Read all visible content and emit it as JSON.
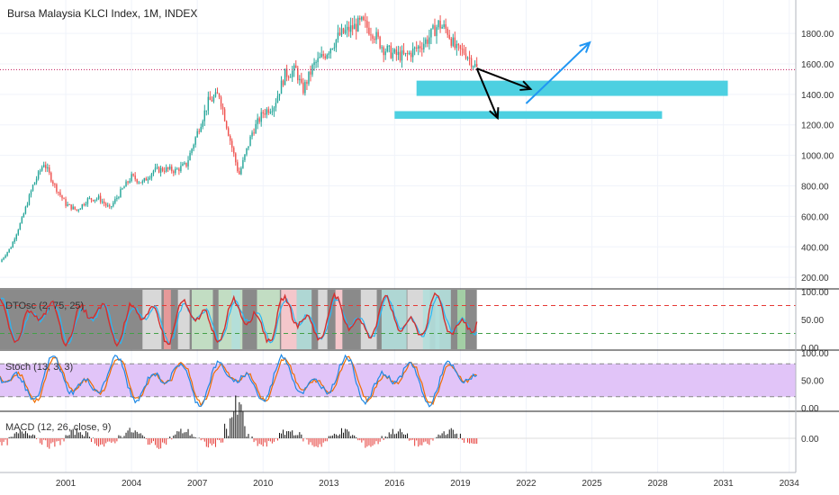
{
  "chart_data": {
    "type": "candlestick",
    "title": "Bursa Malaysia KLCI Index, 1M, INDEX",
    "current_price": 1562,
    "price_axis": {
      "range": [
        130,
        1960
      ],
      "ticks": [
        {
          "v": 200,
          "label": "200.00"
        },
        {
          "v": 400,
          "label": "400.00"
        },
        {
          "v": 600,
          "label": "600.00"
        },
        {
          "v": 800,
          "label": "800.00"
        },
        {
          "v": 1000,
          "label": "1000.00"
        },
        {
          "v": 1200,
          "label": "1200.00"
        },
        {
          "v": 1400,
          "label": "1400.00"
        },
        {
          "v": 1600,
          "label": "1600.00"
        },
        {
          "v": 1800,
          "label": "1800.00"
        }
      ]
    },
    "time_axis": {
      "range": [
        1998.0,
        2034.3
      ],
      "ticks": [
        {
          "v": 2001,
          "label": "2001"
        },
        {
          "v": 2004,
          "label": "2004"
        },
        {
          "v": 2007,
          "label": "2007"
        },
        {
          "v": 2010,
          "label": "2010"
        },
        {
          "v": 2013,
          "label": "2013"
        },
        {
          "v": 2016,
          "label": "2016"
        },
        {
          "v": 2019,
          "label": "2019"
        },
        {
          "v": 2022,
          "label": "2022"
        },
        {
          "v": 2025,
          "label": "2025"
        },
        {
          "v": 2028,
          "label": "2028"
        },
        {
          "v": 2031,
          "label": "2031"
        },
        {
          "v": 2034,
          "label": "2034"
        }
      ]
    },
    "price_path": [
      {
        "t": 1998.0,
        "p": 300
      },
      {
        "t": 1998.5,
        "p": 400
      },
      {
        "t": 1999.0,
        "p": 580
      },
      {
        "t": 1999.5,
        "p": 800
      },
      {
        "t": 2000.0,
        "p": 950
      },
      {
        "t": 2000.5,
        "p": 800
      },
      {
        "t": 2001.0,
        "p": 680
      },
      {
        "t": 2001.5,
        "p": 640
      },
      {
        "t": 2002.0,
        "p": 710
      },
      {
        "t": 2002.5,
        "p": 720
      },
      {
        "t": 2003.0,
        "p": 650
      },
      {
        "t": 2003.5,
        "p": 760
      },
      {
        "t": 2004.0,
        "p": 860
      },
      {
        "t": 2004.5,
        "p": 820
      },
      {
        "t": 2005.0,
        "p": 900
      },
      {
        "t": 2005.5,
        "p": 910
      },
      {
        "t": 2006.0,
        "p": 900
      },
      {
        "t": 2006.5,
        "p": 940
      },
      {
        "t": 2007.0,
        "p": 1150
      },
      {
        "t": 2007.5,
        "p": 1350
      },
      {
        "t": 2008.0,
        "p": 1400
      },
      {
        "t": 2008.5,
        "p": 1100
      },
      {
        "t": 2008.9,
        "p": 870
      },
      {
        "t": 2009.5,
        "p": 1150
      },
      {
        "t": 2010.0,
        "p": 1280
      },
      {
        "t": 2010.5,
        "p": 1330
      },
      {
        "t": 2011.0,
        "p": 1530
      },
      {
        "t": 2011.5,
        "p": 1560
      },
      {
        "t": 2011.8,
        "p": 1420
      },
      {
        "t": 2012.3,
        "p": 1590
      },
      {
        "t": 2012.8,
        "p": 1660
      },
      {
        "t": 2013.5,
        "p": 1790
      },
      {
        "t": 2014.0,
        "p": 1830
      },
      {
        "t": 2014.5,
        "p": 1870
      },
      {
        "t": 2015.0,
        "p": 1810
      },
      {
        "t": 2015.5,
        "p": 1700
      },
      {
        "t": 2016.0,
        "p": 1660
      },
      {
        "t": 2016.5,
        "p": 1650
      },
      {
        "t": 2017.0,
        "p": 1700
      },
      {
        "t": 2017.5,
        "p": 1760
      },
      {
        "t": 2018.0,
        "p": 1860
      },
      {
        "t": 2018.4,
        "p": 1820
      },
      {
        "t": 2018.8,
        "p": 1690
      },
      {
        "t": 2019.2,
        "p": 1680
      },
      {
        "t": 2019.6,
        "p": 1600
      },
      {
        "t": 2019.75,
        "p": 1570
      }
    ],
    "annotations": {
      "zones": [
        {
          "t0": 2017.0,
          "t1": 2031.2,
          "p_top": 1490,
          "p_bottom": 1390,
          "color": "#4dd0e1"
        },
        {
          "t0": 2016.0,
          "t1": 2028.2,
          "p_top": 1290,
          "p_bottom": 1240,
          "color": "#4dd0e1"
        }
      ],
      "arrows": [
        {
          "t0": 2019.75,
          "p0": 1570,
          "t1": 2022.2,
          "p1": 1435,
          "color": "#000000"
        },
        {
          "t0": 2019.75,
          "p0": 1570,
          "t1": 2020.7,
          "p1": 1245,
          "color": "#000000"
        },
        {
          "t0": 2022.0,
          "p0": 1340,
          "t1": 2024.9,
          "p1": 1740,
          "color": "#2196f3"
        }
      ]
    },
    "indicators": {
      "dtosc": {
        "label": "DTOsc (2, 75, 25)",
        "ticks": [
          "100.00",
          "50.00",
          "0.00"
        ],
        "upper_level": 75,
        "lower_level": 25
      },
      "stoch": {
        "label": "Stoch (13, 3, 3)",
        "ticks": [
          "100.00",
          "50.00",
          "0.00"
        ],
        "upper_level": 80,
        "lower_level": 20
      },
      "macd": {
        "label": "MACD (12, 26, close, 9)",
        "ticks": [
          "0.00"
        ]
      }
    },
    "colors": {
      "up": "#26a69a",
      "down": "#ef5350",
      "stoch_band": "#e1c4f8",
      "grid": "#f0f3fa"
    }
  }
}
